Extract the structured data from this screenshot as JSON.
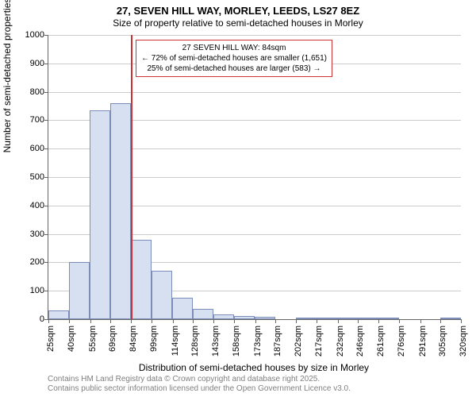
{
  "title": "27, SEVEN HILL WAY, MORLEY, LEEDS, LS27 8EZ",
  "subtitle": "Size of property relative to semi-detached houses in Morley",
  "y_axis": {
    "label": "Number of semi-detached properties",
    "min": 0,
    "max": 1000,
    "tick_step": 100,
    "ticks": [
      0,
      100,
      200,
      300,
      400,
      500,
      600,
      700,
      800,
      900,
      1000
    ]
  },
  "x_axis": {
    "label": "Distribution of semi-detached houses by size in Morley",
    "ticks": [
      25,
      40,
      55,
      69,
      84,
      99,
      114,
      128,
      143,
      158,
      173,
      187,
      202,
      217,
      232,
      246,
      261,
      276,
      291,
      305,
      320
    ],
    "unit": "sqm"
  },
  "histogram": {
    "bar_fill": "#d6e0f0",
    "bar_border": "#7b8db8",
    "bin_start": 25,
    "bin_width": 14.75,
    "values": [
      30,
      200,
      735,
      760,
      280,
      170,
      75,
      35,
      18,
      10,
      8,
      0,
      6,
      6,
      4,
      4,
      2,
      0,
      0,
      2
    ]
  },
  "marker": {
    "value": 84,
    "color": "#cc3333",
    "annotation": {
      "line1": "27 SEVEN HILL WAY: 84sqm",
      "line2": "← 72% of semi-detached houses are smaller (1,651)",
      "line3": "25% of semi-detached houses are larger (583) →"
    }
  },
  "plot_style": {
    "grid_color": "#cccccc",
    "axis_color": "#666666",
    "background": "#ffffff",
    "tick_fontsize": 11,
    "label_fontsize": 12,
    "title_fontsize": 13,
    "annotation_fontsize": 10,
    "attribution_fontsize": 10,
    "attribution_color": "#808080"
  },
  "attribution": {
    "line1": "Contains HM Land Registry data © Crown copyright and database right 2025.",
    "line2": "Contains public sector information licensed under the Open Government Licence v3.0."
  }
}
